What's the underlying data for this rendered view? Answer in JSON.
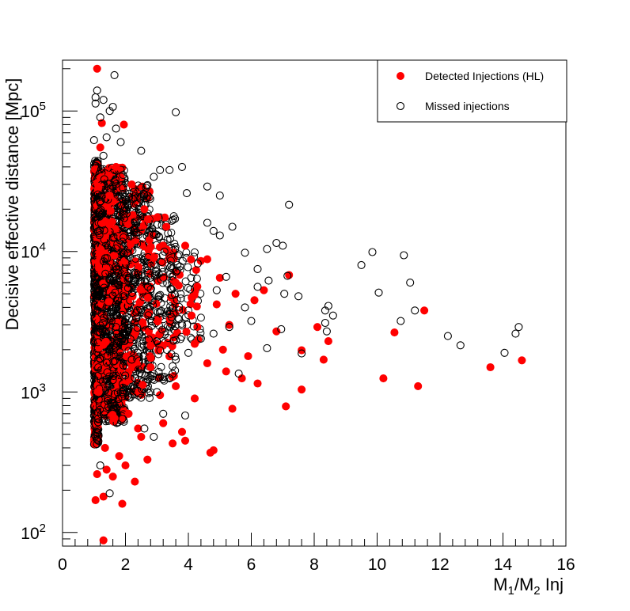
{
  "chart_data": {
    "type": "scatter",
    "xlabel": "M1/M2 Inj",
    "ylabel": "Decisive effective distance [Mpc]",
    "xlim": [
      0,
      16
    ],
    "ylim": [
      80,
      230000
    ],
    "yscale": "log",
    "grid": false,
    "legend_position": "top-right",
    "x_ticks": [
      "0",
      "2",
      "4",
      "6",
      "8",
      "10",
      "12",
      "14",
      "16"
    ],
    "y_ticks": [
      {
        "base": "10",
        "exp": "2",
        "value": 100
      },
      {
        "base": "10",
        "exp": "3",
        "value": 1000
      },
      {
        "base": "10",
        "exp": "4",
        "value": 10000
      },
      {
        "base": "10",
        "exp": "5",
        "value": 100000
      }
    ],
    "series": [
      {
        "name": "Detected Injections (HL)",
        "marker": "filled-circle",
        "color": "#ff0000",
        "points": [
          [
            1.1,
            200000
          ],
          [
            1.25,
            82000
          ],
          [
            1.95,
            80000
          ],
          [
            1.3,
            88
          ],
          [
            1.9,
            160
          ],
          [
            1.05,
            170
          ],
          [
            1.3,
            180
          ],
          [
            2.3,
            230
          ],
          [
            1.6,
            250
          ],
          [
            1.1,
            260
          ],
          [
            1.4,
            280
          ],
          [
            2.0,
            300
          ],
          [
            2.7,
            330
          ],
          [
            1.8,
            350
          ],
          [
            4.7,
            370
          ],
          [
            4.8,
            385
          ],
          [
            3.5,
            430
          ],
          [
            3.9,
            450
          ],
          [
            2.5,
            480
          ],
          [
            3.8,
            520
          ],
          [
            2.4,
            550
          ],
          [
            3.2,
            600
          ],
          [
            5.4,
            760
          ],
          [
            7.1,
            790
          ],
          [
            4.2,
            900
          ],
          [
            3.1,
            950
          ],
          [
            7.6,
            1040
          ],
          [
            3.6,
            1100
          ],
          [
            11.3,
            1100
          ],
          [
            6.2,
            1150
          ],
          [
            10.2,
            1250
          ],
          [
            5.7,
            1250
          ],
          [
            5.2,
            1400
          ],
          [
            4.6,
            1600
          ],
          [
            13.6,
            1500
          ],
          [
            14.6,
            1680
          ],
          [
            8.3,
            1700
          ],
          [
            5.9,
            1800
          ],
          [
            7.6,
            1980
          ],
          [
            5.1,
            2000
          ],
          [
            8.45,
            2300
          ],
          [
            4.2,
            2200
          ],
          [
            10.55,
            2650
          ],
          [
            6.8,
            2700
          ],
          [
            5.3,
            3000
          ],
          [
            8.1,
            2900
          ],
          [
            11.5,
            3800
          ],
          [
            4.9,
            4200
          ],
          [
            6.1,
            4500
          ],
          [
            5.5,
            5000
          ],
          [
            7.2,
            6800
          ],
          [
            6.4,
            5300
          ],
          [
            4.6,
            8800
          ],
          [
            3.9,
            11000
          ],
          [
            3.3,
            15000
          ],
          [
            2.6,
            20000
          ],
          [
            2.2,
            30000
          ],
          [
            1.7,
            40000
          ],
          [
            1.2,
            55000
          ],
          [
            1.5,
            25000
          ],
          [
            2.9,
            9000
          ],
          [
            3.6,
            6000
          ],
          [
            4.1,
            3500
          ],
          [
            5.0,
            6500
          ],
          [
            2.1,
            700
          ],
          [
            1.35,
            400
          ],
          [
            1.15,
            1000
          ],
          [
            2.8,
            1500
          ]
        ]
      },
      {
        "name": "Missed injections",
        "marker": "open-circle",
        "color": "#000000",
        "points": [
          [
            1.65,
            180000
          ],
          [
            1.1,
            140000
          ],
          [
            1.05,
            125000
          ],
          [
            1.3,
            120000
          ],
          [
            1.05,
            113000
          ],
          [
            1.5,
            100000
          ],
          [
            1.6,
            107000
          ],
          [
            3.6,
            98000
          ],
          [
            1.2,
            90000
          ],
          [
            1.7,
            75000
          ],
          [
            1.4,
            65000
          ],
          [
            1.85,
            60000
          ],
          [
            1.0,
            62000
          ],
          [
            2.5,
            52000
          ],
          [
            1.3,
            48000
          ],
          [
            3.1,
            38000
          ],
          [
            3.4,
            38000
          ],
          [
            3.8,
            40000
          ],
          [
            2.9,
            34000
          ],
          [
            4.6,
            29000
          ],
          [
            5.0,
            25000
          ],
          [
            3.95,
            26000
          ],
          [
            7.2,
            21500
          ],
          [
            4.6,
            16000
          ],
          [
            5.4,
            15000
          ],
          [
            5.0,
            13000
          ],
          [
            4.8,
            14000
          ],
          [
            6.8,
            11500
          ],
          [
            7.0,
            11000
          ],
          [
            6.5,
            10400
          ],
          [
            9.85,
            9900
          ],
          [
            10.85,
            9400
          ],
          [
            9.5,
            8000
          ],
          [
            5.8,
            9800
          ],
          [
            11.05,
            6000
          ],
          [
            7.15,
            6700
          ],
          [
            6.55,
            6200
          ],
          [
            6.2,
            5600
          ],
          [
            10.05,
            5100
          ],
          [
            7.05,
            5000
          ],
          [
            7.5,
            4800
          ],
          [
            8.45,
            4100
          ],
          [
            8.35,
            3800
          ],
          [
            8.6,
            3500
          ],
          [
            10.75,
            3200
          ],
          [
            11.2,
            3800
          ],
          [
            8.35,
            3100
          ],
          [
            8.4,
            2700
          ],
          [
            14.5,
            2900
          ],
          [
            14.4,
            2600
          ],
          [
            12.25,
            2500
          ],
          [
            12.65,
            2150
          ],
          [
            14.05,
            1900
          ],
          [
            6.95,
            2800
          ],
          [
            6.5,
            2050
          ],
          [
            7.6,
            1880
          ],
          [
            5.3,
            2900
          ],
          [
            6.0,
            3200
          ],
          [
            4.8,
            2600
          ],
          [
            4.4,
            2400
          ],
          [
            4.0,
            1900
          ],
          [
            3.6,
            1700
          ],
          [
            3.0,
            1000
          ],
          [
            3.2,
            700
          ],
          [
            3.9,
            680
          ],
          [
            2.9,
            480
          ],
          [
            1.5,
            190
          ],
          [
            1.2,
            300
          ],
          [
            1.1,
            500
          ],
          [
            2.6,
            550
          ],
          [
            3.4,
            1250
          ],
          [
            5.6,
            1350
          ],
          [
            5.8,
            4000
          ],
          [
            6.2,
            7500
          ],
          [
            4.3,
            8200
          ],
          [
            5.2,
            6600
          ],
          [
            4.9,
            5300
          ],
          [
            3.7,
            3300
          ],
          [
            2.2,
            1700
          ],
          [
            1.9,
            1000
          ]
        ]
      }
    ]
  }
}
